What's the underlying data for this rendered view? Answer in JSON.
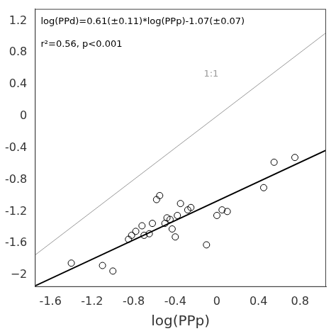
{
  "chart_data": {
    "type": "scatter",
    "xlabel": "log(PPp)",
    "xlim": [
      -1.75,
      1.05
    ],
    "ylim": [
      -2.15,
      1.35
    ],
    "xticks": [
      -1.6,
      -1.2,
      -0.8,
      -0.4,
      {
        "value": 0.0,
        "label": "0"
      },
      0.4,
      0.8
    ],
    "yticks": [
      {
        "value": -2.0,
        "label": "−2"
      },
      -1.6,
      -1.2,
      -0.8,
      -0.4,
      {
        "value": 0.0,
        "label": "0"
      },
      0.4,
      0.8,
      1.2
    ],
    "grid": false,
    "series": [
      {
        "type": "line",
        "color": "#999999",
        "x": [
          -1.75,
          1.05
        ],
        "values": [
          -1.75,
          1.05
        ]
      },
      {
        "type": "line",
        "color": "#000000",
        "x": [
          -1.75,
          1.05
        ],
        "values": [
          -2.1375,
          -0.4295
        ]
      },
      {
        "type": "scatter",
        "color": "#000000",
        "marker": "circle-open",
        "x": [
          -1.4,
          -1.1,
          -1.0,
          -0.85,
          -0.82,
          -0.78,
          -0.72,
          -0.7,
          -0.65,
          -0.62,
          -0.58,
          -0.55,
          -0.5,
          -0.48,
          -0.45,
          -0.43,
          -0.4,
          -0.38,
          -0.35,
          -0.28,
          -0.25,
          -0.1,
          0.0,
          0.05,
          0.1,
          0.45,
          0.55,
          0.75
        ],
        "values": [
          -1.85,
          -1.88,
          -1.95,
          -1.55,
          -1.5,
          -1.45,
          -1.38,
          -1.5,
          -1.48,
          -1.35,
          -1.05,
          -1.0,
          -1.35,
          -1.28,
          -1.3,
          -1.42,
          -1.52,
          -1.25,
          -1.1,
          -1.18,
          -1.15,
          -1.62,
          -1.25,
          -1.18,
          -1.2,
          -0.9,
          -0.58,
          -0.52
        ]
      }
    ],
    "annotations": [
      {
        "text": "log(PPd)=0.61(±0.11)*log(PPp)-1.07(±0.07)"
      },
      {
        "text": "r²=0.56, p<0.001"
      },
      {
        "text": "1:1",
        "color": "#999999"
      }
    ]
  }
}
